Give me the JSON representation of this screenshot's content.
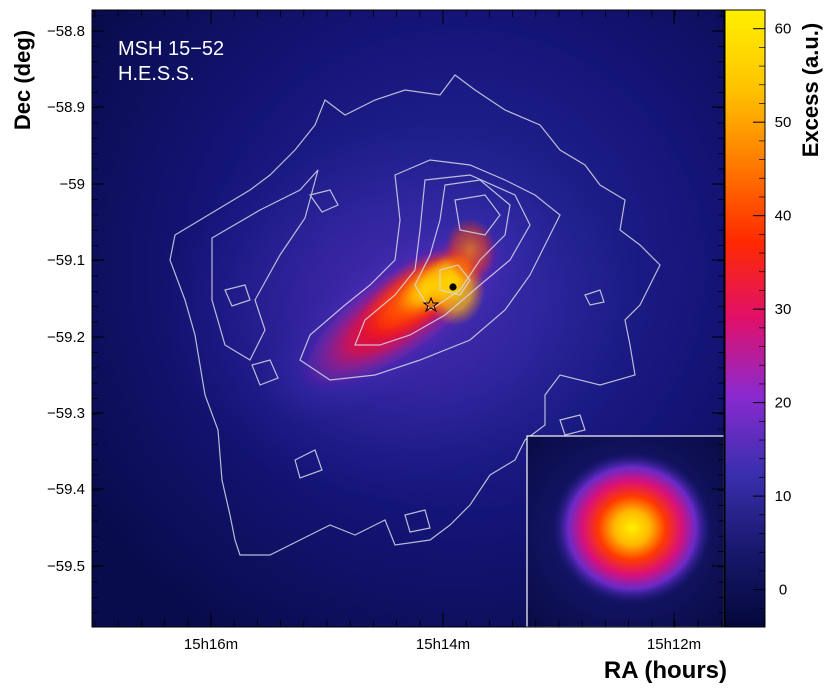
{
  "chart_data": {
    "type": "heatmap",
    "title_lines": [
      "MSH 15−52",
      "H.E.S.S."
    ],
    "xlabel": "RA (hours)",
    "ylabel": "Dec (deg)",
    "colorbar_label": "Excess (a.u.)",
    "x_ticks": [
      "15h16m",
      "15h14m",
      "15h12m"
    ],
    "y_ticks": [
      "−58.8",
      "−58.9",
      "−59",
      "−59.1",
      "−59.2",
      "−59.3",
      "−59.4",
      "−59.5"
    ],
    "colorbar_ticks": [
      "0",
      "10",
      "20",
      "30",
      "40",
      "50",
      "60"
    ],
    "colorbar_range": [
      -4,
      62
    ],
    "dec_range": [
      -59.58,
      -58.76
    ],
    "ra_range_minutes": [
      "15h17m",
      "15h11.3m"
    ],
    "markers": [
      {
        "type": "star",
        "label": "pulsar position",
        "ra": "15h14.1m",
        "dec": -59.157
      },
      {
        "type": "dot",
        "label": "emission centroid",
        "ra": "15h13.9m",
        "dec": -59.135
      }
    ],
    "inset": {
      "content": "PSF",
      "position": "bottom-right"
    },
    "colormap": [
      "#03083a",
      "#18186e",
      "#3a2fae",
      "#8a2ad0",
      "#e0106a",
      "#ff2a00",
      "#ff7a00",
      "#ffc400",
      "#fff000"
    ]
  }
}
